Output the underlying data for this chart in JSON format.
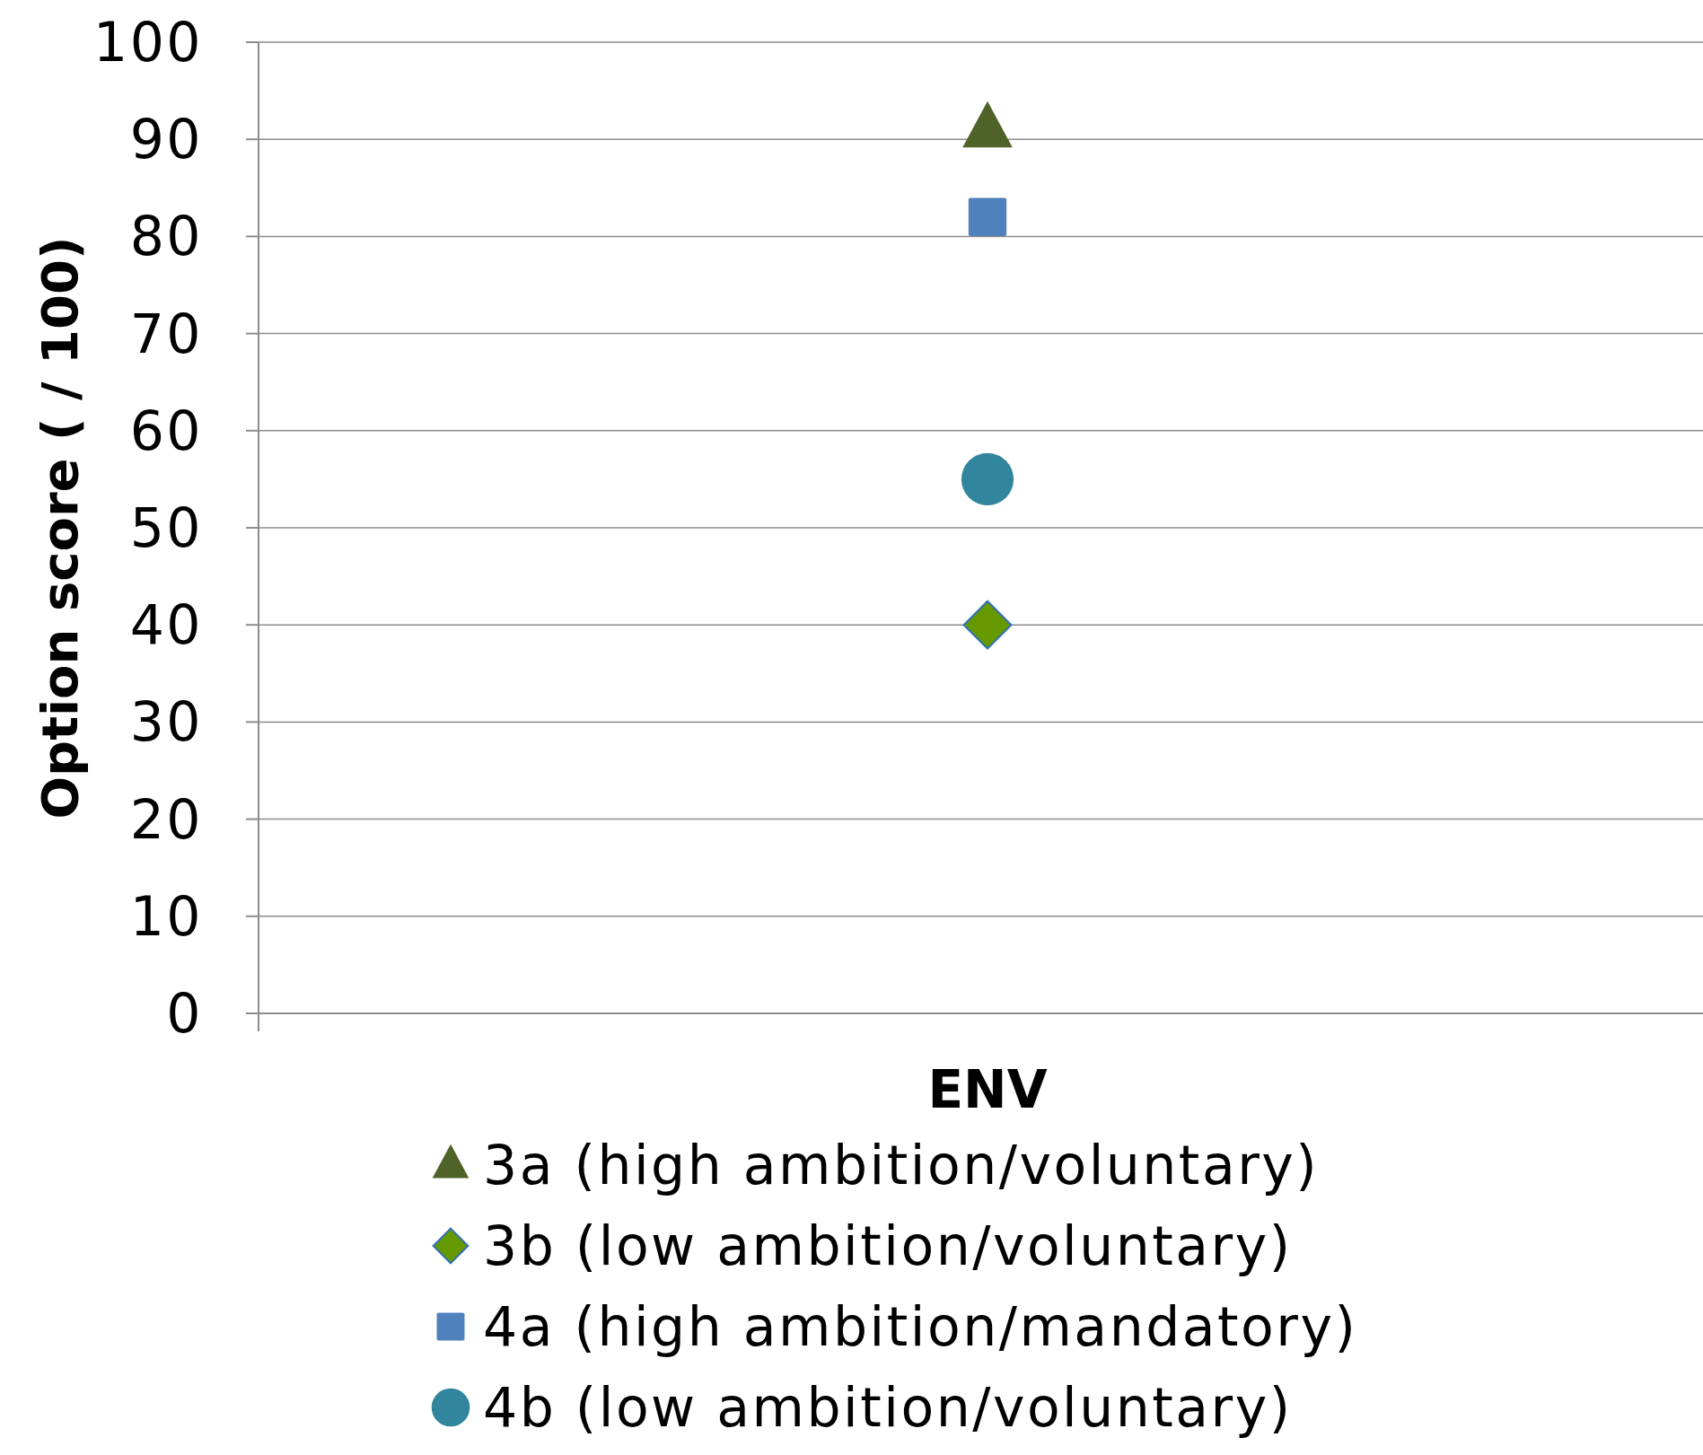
{
  "chart_data": {
    "type": "scatter",
    "ylabel": "Option score ( / 100)",
    "categories": [
      "ENV"
    ],
    "ylim": [
      0,
      100
    ],
    "yticks": [
      0,
      10,
      20,
      30,
      40,
      50,
      60,
      70,
      80,
      90,
      100
    ],
    "grid": "y",
    "legend": "bottom",
    "series": [
      {
        "name": "3a (high ambition/voluntary)",
        "color": "#4f6228",
        "marker": "triangle",
        "values": [
          91
        ]
      },
      {
        "name": "3b (low ambition/voluntary)",
        "color": "#669900",
        "marker": "diamond",
        "values": [
          40
        ]
      },
      {
        "name": "4a (high ambition/mandatory)",
        "color": "#4f81bd",
        "marker": "square",
        "values": [
          82
        ]
      },
      {
        "name": "4b (low ambition/voluntary)",
        "color": "#31859c",
        "marker": "circle",
        "values": [
          55
        ]
      }
    ]
  }
}
